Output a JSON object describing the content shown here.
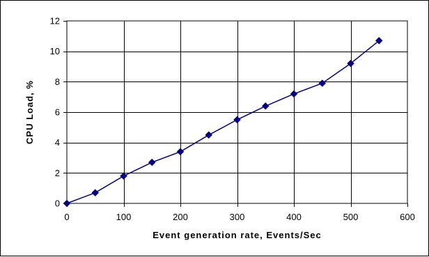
{
  "chart_data": {
    "type": "line",
    "title": "",
    "xlabel": "Event generation rate, Events/Sec",
    "ylabel": "CPU Load, %",
    "xlim": [
      0,
      600
    ],
    "ylim": [
      0,
      12
    ],
    "x_ticks": [
      0,
      100,
      200,
      300,
      400,
      500,
      600
    ],
    "y_ticks": [
      0,
      2,
      4,
      6,
      8,
      10,
      12
    ],
    "grid": true,
    "legend": "none",
    "series": [
      {
        "color": "#000080",
        "marker": "diamond",
        "x": [
          0,
          50,
          100,
          150,
          200,
          250,
          300,
          350,
          400,
          450,
          500,
          550
        ],
        "y": [
          0.0,
          0.7,
          1.8,
          2.7,
          3.4,
          4.5,
          5.5,
          6.4,
          7.2,
          7.9,
          9.2,
          10.7
        ]
      }
    ]
  }
}
